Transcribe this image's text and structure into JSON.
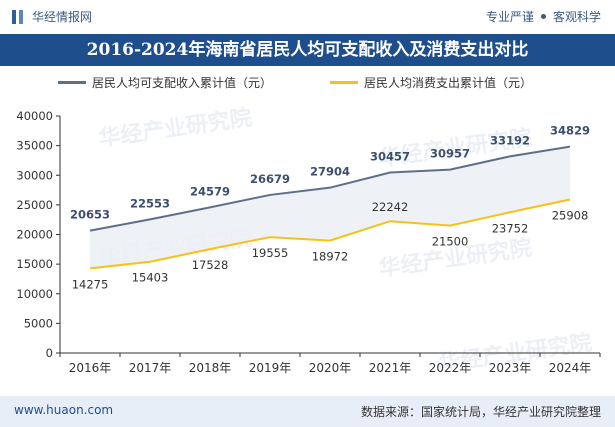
{
  "header": {
    "brand": "华经情报网",
    "tagline_left": "专业严谨",
    "tagline_right": "客观科学"
  },
  "title": "2016-2024年海南省居民人均可支配收入及消费支出对比",
  "footer": {
    "url": "www.huaon.com",
    "source": "数据来源：国家统计局，华经产业研究院整理"
  },
  "watermark": "华经产业研究院",
  "colors": {
    "income": "#5f6f88",
    "spending": "#f5c218",
    "band": "#eceff5",
    "title_bg": "#1f4e8c"
  },
  "chart_data": {
    "type": "line",
    "categories": [
      "2016年",
      "2017年",
      "2018年",
      "2019年",
      "2020年",
      "2021年",
      "2022年",
      "2023年",
      "2024年"
    ],
    "series": [
      {
        "name": "居民人均可支配收入累计值（元）",
        "values": [
          20653,
          22553,
          24579,
          26679,
          27904,
          30457,
          30957,
          33192,
          34829
        ]
      },
      {
        "name": "居民人均消费支出累计值（元）",
        "values": [
          14275,
          15403,
          17528,
          19555,
          18972,
          22242,
          21500,
          23752,
          25908
        ]
      }
    ],
    "ylim": [
      0,
      40000
    ],
    "yticks": [
      0,
      5000,
      10000,
      15000,
      20000,
      25000,
      30000,
      35000,
      40000
    ],
    "grid": false,
    "legend": "top"
  }
}
